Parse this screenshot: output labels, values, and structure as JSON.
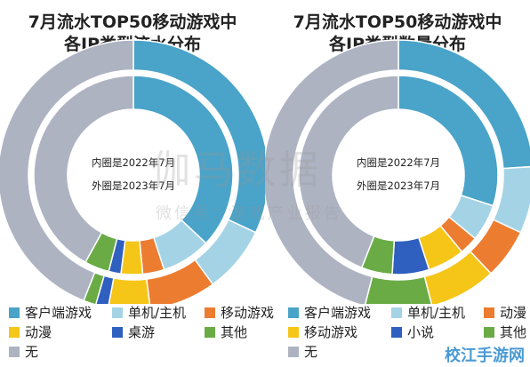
{
  "chart_data": [
    {
      "type": "donut",
      "title_line1": "7月流水TOP50移动游戏中",
      "title_line2": "各IP类型流水分布",
      "center_line1": "内圈是2022年7月",
      "center_line2": "外圈是2023年7月",
      "legend": [
        {
          "label": "客户端游戏",
          "color": "#4aa3c8"
        },
        {
          "label": "单机/主机",
          "color": "#a4d3e6"
        },
        {
          "label": "移动游戏",
          "color": "#ec7c30"
        },
        {
          "label": "动漫",
          "color": "#f5c518"
        },
        {
          "label": "桌游",
          "color": "#2f5fbf"
        },
        {
          "label": "其他",
          "color": "#6aab46"
        },
        {
          "label": "无",
          "color": "#aeb3c2"
        }
      ],
      "inner_ring": [
        {
          "name": "客户端游戏",
          "value": 37.0
        },
        {
          "name": "单机/主机",
          "value": 8.0
        },
        {
          "name": "移动游戏",
          "value": 3.5
        },
        {
          "name": "动漫",
          "value": 3.5
        },
        {
          "name": "桌游",
          "value": 2.0
        },
        {
          "name": "其他",
          "value": 4.0
        },
        {
          "name": "无",
          "value": 42.0
        }
      ],
      "outer_ring": [
        {
          "name": "客户端游戏",
          "value": 32.0
        },
        {
          "name": "单机/主机",
          "value": 8.0
        },
        {
          "name": "移动游戏",
          "value": 8.0
        },
        {
          "name": "动漫",
          "value": 5.0
        },
        {
          "name": "桌游",
          "value": 1.5
        },
        {
          "name": "其他",
          "value": 1.5
        },
        {
          "name": "无",
          "value": 44.0
        }
      ]
    },
    {
      "type": "donut",
      "title_line1": "7月流水TOP50移动游戏中",
      "title_line2": "各IP类型数量分布",
      "center_line1": "内圈是2022年7月",
      "center_line2": "外圈是2023年7月",
      "legend": [
        {
          "label": "客户端游戏",
          "color": "#4aa3c8"
        },
        {
          "label": "单机/主机",
          "color": "#a4d3e6"
        },
        {
          "label": "动漫",
          "color": "#ec7c30"
        },
        {
          "label": "移动游戏",
          "color": "#f5c518"
        },
        {
          "label": "小说",
          "color": "#2f5fbf"
        },
        {
          "label": "其他",
          "color": "#6aab46"
        },
        {
          "label": "无",
          "color": "#aeb3c2"
        }
      ],
      "inner_ring": [
        {
          "name": "客户端游戏",
          "value": 30.0
        },
        {
          "name": "单机/主机",
          "value": 6.0
        },
        {
          "name": "动漫",
          "value": 3.0
        },
        {
          "name": "移动游戏",
          "value": 6.0
        },
        {
          "name": "小说",
          "value": 6.0
        },
        {
          "name": "其他",
          "value": 5.0
        },
        {
          "name": "无",
          "value": 44.0
        }
      ],
      "outer_ring": [
        {
          "name": "客户端游戏",
          "value": 24.0
        },
        {
          "name": "单机/主机",
          "value": 8.0
        },
        {
          "name": "动漫",
          "value": 6.0
        },
        {
          "name": "移动游戏",
          "value": 8.0
        },
        {
          "name": "小说",
          "value": 0.0
        },
        {
          "name": "其他",
          "value": 8.0
        },
        {
          "name": "无",
          "value": 46.0
        }
      ]
    }
  ],
  "watermark": {
    "main": "伽马数据",
    "sub": "微信号：游戏产业报告"
  },
  "corner_logo": "校江手游网"
}
